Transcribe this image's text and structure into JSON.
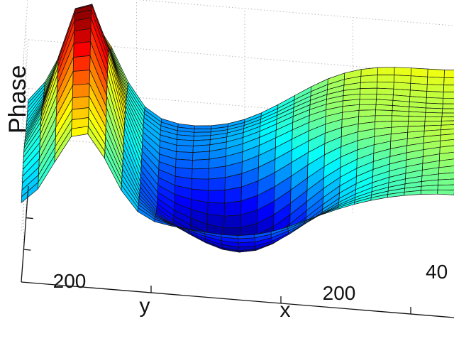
{
  "chart_data": {
    "type": "surface",
    "colormap": "jet",
    "zlabel": "Phase",
    "xlabel": "x",
    "ylabel": "y",
    "x_tick_labels": [
      "200",
      "40"
    ],
    "y_tick_labels": [
      "200"
    ],
    "grid": true,
    "surface_shape": "saddle: high red ridge peak toward low x / high y, broad deep blue trough in centre, rising to a yellow-green plateau at high x"
  }
}
